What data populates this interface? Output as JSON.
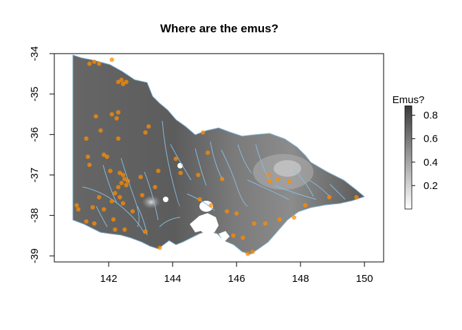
{
  "chart_data": {
    "type": "heatmap",
    "title": "Where are the emus?",
    "xlabel": "",
    "ylabel": "",
    "xlim": [
      140.3,
      150.6
    ],
    "ylim": [
      -39.15,
      -34.0
    ],
    "x_ticks": [
      142,
      144,
      146,
      148,
      150
    ],
    "y_ticks": [
      -34,
      -35,
      -36,
      -37,
      -38,
      -39
    ],
    "legend": {
      "title": "Emus?",
      "position": "right",
      "range": [
        0.0,
        0.88
      ],
      "ticks": [
        0.2,
        0.4,
        0.6,
        0.8
      ],
      "tick_labels": [
        "0.2",
        "0.4",
        "0.6",
        "0.8"
      ],
      "low_color": "#ffffff",
      "high_color": "#3a3a3a"
    },
    "series": [
      {
        "type": "scatter",
        "color": "#ff8c00",
        "points": [
          [
            141.4,
            -34.25
          ],
          [
            141.55,
            -34.2
          ],
          [
            141.7,
            -34.25
          ],
          [
            142.1,
            -34.15
          ],
          [
            142.4,
            -34.65
          ],
          [
            142.45,
            -34.75
          ],
          [
            142.3,
            -34.7
          ],
          [
            142.55,
            -34.7
          ],
          [
            141.6,
            -35.55
          ],
          [
            142.1,
            -35.5
          ],
          [
            142.3,
            -35.45
          ],
          [
            142.25,
            -35.6
          ],
          [
            141.75,
            -35.9
          ],
          [
            141.3,
            -36.1
          ],
          [
            142.3,
            -36.1
          ],
          [
            141.85,
            -36.5
          ],
          [
            141.95,
            -36.55
          ],
          [
            141.35,
            -36.55
          ],
          [
            141.4,
            -36.75
          ],
          [
            142.05,
            -36.9
          ],
          [
            142.35,
            -36.95
          ],
          [
            142.45,
            -37.0
          ],
          [
            142.5,
            -37.1
          ],
          [
            142.6,
            -37.15
          ],
          [
            142.4,
            -37.2
          ],
          [
            142.55,
            -37.25
          ],
          [
            142.3,
            -37.3
          ],
          [
            142.2,
            -37.45
          ],
          [
            142.35,
            -37.55
          ],
          [
            142.1,
            -37.65
          ],
          [
            142.45,
            -37.7
          ],
          [
            141.7,
            -37.55
          ],
          [
            141.0,
            -37.75
          ],
          [
            141.05,
            -37.85
          ],
          [
            141.5,
            -37.8
          ],
          [
            141.85,
            -37.85
          ],
          [
            143.05,
            -37.5
          ],
          [
            143.45,
            -37.3
          ],
          [
            142.75,
            -37.9
          ],
          [
            142.15,
            -38.1
          ],
          [
            141.55,
            -38.2
          ],
          [
            141.3,
            -38.15
          ],
          [
            142.2,
            -38.35
          ],
          [
            142.5,
            -38.35
          ],
          [
            143.15,
            -38.4
          ],
          [
            143.6,
            -38.8
          ],
          [
            143.0,
            -37.05
          ],
          [
            143.55,
            -36.9
          ],
          [
            144.25,
            -36.95
          ],
          [
            144.95,
            -35.95
          ],
          [
            145.1,
            -36.45
          ],
          [
            144.8,
            -37.0
          ],
          [
            145.55,
            -37.1
          ],
          [
            144.85,
            -37.6
          ],
          [
            145.7,
            -37.9
          ],
          [
            146.0,
            -37.95
          ],
          [
            145.9,
            -38.5
          ],
          [
            146.2,
            -38.55
          ],
          [
            146.35,
            -38.95
          ],
          [
            146.5,
            -38.9
          ],
          [
            146.55,
            -38.2
          ],
          [
            146.9,
            -38.2
          ],
          [
            147.35,
            -38.1
          ],
          [
            147.8,
            -38.05
          ],
          [
            148.15,
            -37.75
          ],
          [
            147.0,
            -37.0
          ],
          [
            147.05,
            -37.15
          ],
          [
            147.3,
            -37.1
          ],
          [
            147.65,
            -37.15
          ],
          [
            149.75,
            -37.55
          ],
          [
            148.9,
            -37.55
          ],
          [
            143.15,
            -35.95
          ],
          [
            144.1,
            -36.6
          ],
          [
            145.2,
            -37.75
          ],
          [
            143.25,
            -35.8
          ]
        ]
      }
    ]
  }
}
